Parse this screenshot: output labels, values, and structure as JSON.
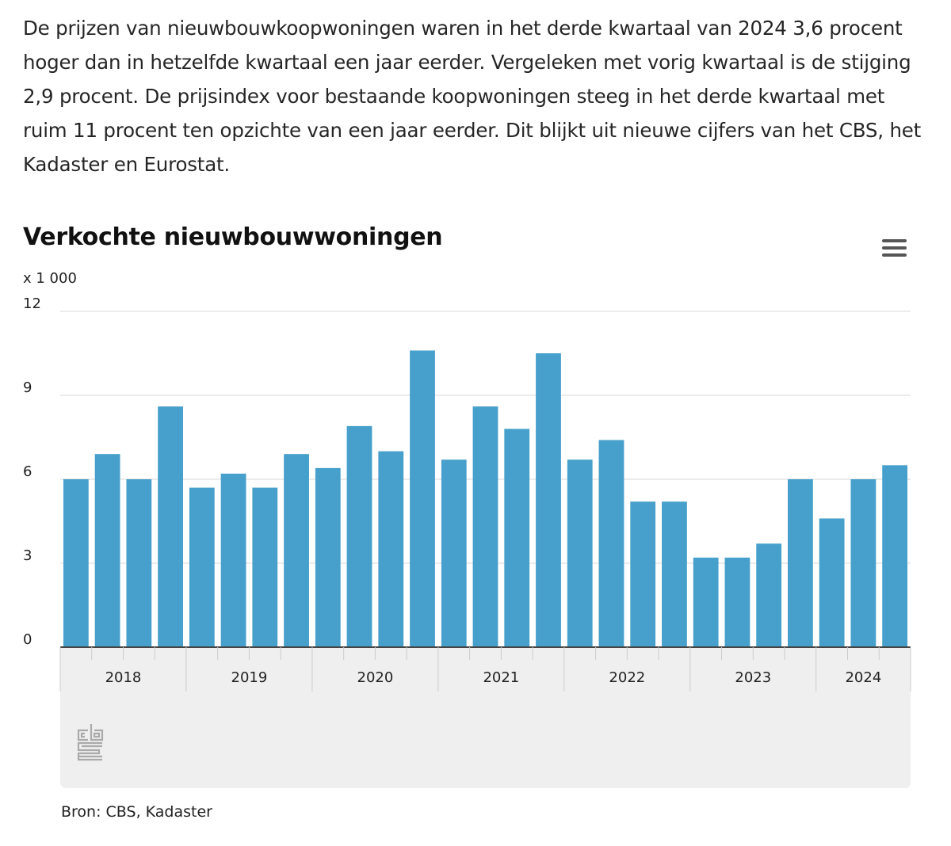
{
  "article": {
    "intro": "De prijzen van nieuwbouwkoopwoningen waren in het derde kwartaal van 2024 3,6 procent hoger dan in hetzelfde kwartaal een jaar eerder. Vergeleken met vorig kwartaal is de stijging 2,9 procent. De prijsindex voor bestaande koopwoningen steeg in het derde kwartaal met ruim 11 procent ten opzichte van een jaar eerder. Dit blijkt uit nieuwe cijfers van het CBS, het Kadaster en Eurostat."
  },
  "chart_data": {
    "type": "bar",
    "title": "Verkochte nieuwbouwwoningen",
    "unit_label": "x 1 000",
    "ylim": [
      0,
      12
    ],
    "y_ticks": [
      0,
      3,
      6,
      9,
      12
    ],
    "grid": true,
    "legend": "none",
    "bar_color": "#47a0cb",
    "year_labels": [
      "2018",
      "2019",
      "2020",
      "2021",
      "2022",
      "2023",
      "2024"
    ],
    "categories": [
      "2018 Q1",
      "2018 Q2",
      "2018 Q3",
      "2018 Q4",
      "2019 Q1",
      "2019 Q2",
      "2019 Q3",
      "2019 Q4",
      "2020 Q1",
      "2020 Q2",
      "2020 Q3",
      "2020 Q4",
      "2021 Q1",
      "2021 Q2",
      "2021 Q3",
      "2021 Q4",
      "2022 Q1",
      "2022 Q2",
      "2022 Q3",
      "2022 Q4",
      "2023 Q1",
      "2023 Q2",
      "2023 Q3",
      "2023 Q4",
      "2024 Q1",
      "2024 Q2",
      "2024 Q3"
    ],
    "values": [
      6.0,
      6.9,
      6.0,
      8.6,
      5.7,
      6.2,
      5.7,
      6.9,
      6.4,
      7.9,
      7.0,
      10.6,
      6.7,
      8.6,
      7.8,
      10.5,
      6.7,
      7.4,
      5.2,
      5.2,
      3.2,
      3.2,
      3.7,
      6.0,
      4.6,
      6.0,
      6.5
    ]
  },
  "footer": {
    "source": "Bron: CBS, Kadaster",
    "logo_text": "cbs"
  }
}
